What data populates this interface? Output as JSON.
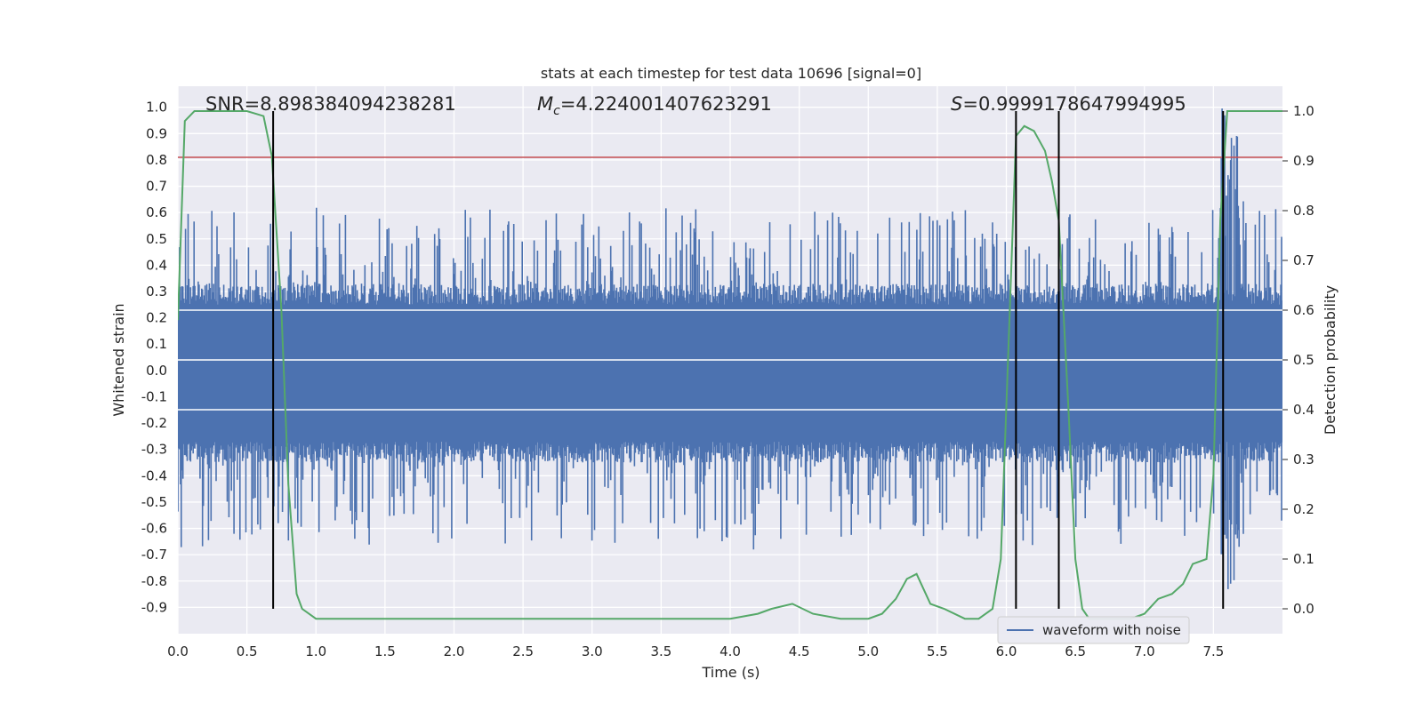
{
  "chart_data": {
    "type": "line",
    "title": "stats at each timestep for test data 10696 [signal=0]",
    "xlabel": "Time (s)",
    "ylabel": "Whitened strain",
    "y2label": "Detection probability",
    "xlim": [
      0.0,
      8.0
    ],
    "ylim": [
      -1.0,
      1.08
    ],
    "y2lim": [
      -0.05,
      1.05
    ],
    "x_ticks": [
      "0.0",
      "0.5",
      "1.0",
      "1.5",
      "2.0",
      "2.5",
      "3.0",
      "3.5",
      "4.0",
      "4.5",
      "5.0",
      "5.5",
      "6.0",
      "6.5",
      "7.0",
      "7.5"
    ],
    "y_ticks": [
      "-0.9",
      "-0.8",
      "-0.7",
      "-0.6",
      "-0.5",
      "-0.4",
      "-0.3",
      "-0.2",
      "-0.1",
      "0.0",
      "0.1",
      "0.2",
      "0.3",
      "0.4",
      "0.5",
      "0.6",
      "0.7",
      "0.8",
      "0.9",
      "1.0"
    ],
    "y2_ticks": [
      "0.0",
      "0.1",
      "0.2",
      "0.3",
      "0.4",
      "0.5",
      "0.6",
      "0.7",
      "0.8",
      "0.9",
      "1.0"
    ],
    "grid": true,
    "legend_position": "lower-right",
    "annotations": {
      "snr": "SNR=8.898384094238281",
      "mc_symbol": "M",
      "mc_sub": "c",
      "mc_value": "=4.224001407623291",
      "s_symbol": "S",
      "s_value": "=0.9999178647994995"
    },
    "series": [
      {
        "name": "waveform with noise",
        "axis": "left",
        "color": "#4c72b0",
        "noise_band_min": -0.32,
        "noise_band_max": 0.3,
        "peak_range": [
          -0.88,
          0.62
        ]
      },
      {
        "axis": "right",
        "color": "#55a868",
        "x": [
          0.0,
          0.05,
          0.12,
          0.2,
          0.3,
          0.4,
          0.5,
          0.62,
          0.68,
          0.75,
          0.8,
          0.86,
          0.9,
          1.0,
          1.5,
          2.0,
          2.5,
          3.0,
          3.5,
          4.0,
          4.2,
          4.3,
          4.45,
          4.6,
          4.8,
          5.0,
          5.1,
          5.2,
          5.28,
          5.35,
          5.45,
          5.55,
          5.7,
          5.8,
          5.9,
          5.96,
          6.02,
          6.07,
          6.13,
          6.2,
          6.28,
          6.33,
          6.38,
          6.45,
          6.5,
          6.55,
          6.6,
          6.7,
          6.9,
          7.0,
          7.1,
          7.2,
          7.28,
          7.35,
          7.45,
          7.5,
          7.55,
          7.6,
          7.65,
          7.7,
          8.0
        ],
        "values": [
          0.58,
          0.98,
          1.0,
          1.0,
          1.0,
          1.0,
          1.0,
          0.99,
          0.91,
          0.6,
          0.25,
          0.03,
          0.0,
          -0.02,
          -0.02,
          -0.02,
          -0.02,
          -0.02,
          -0.02,
          -0.02,
          -0.01,
          0.0,
          0.01,
          -0.01,
          -0.02,
          -0.02,
          -0.01,
          0.02,
          0.06,
          0.07,
          0.01,
          0.0,
          -0.02,
          -0.02,
          0.0,
          0.1,
          0.56,
          0.95,
          0.97,
          0.96,
          0.92,
          0.86,
          0.78,
          0.4,
          0.1,
          0.0,
          -0.02,
          -0.02,
          -0.02,
          -0.01,
          0.02,
          0.03,
          0.05,
          0.09,
          0.1,
          0.27,
          0.78,
          1.0,
          1.0,
          1.0,
          1.0
        ]
      }
    ],
    "horizontal_lines": [
      {
        "axis": "left",
        "y": 0.81,
        "color": "#c44e52"
      },
      {
        "axis": "right",
        "y": 0.6,
        "color": "#ffffff"
      },
      {
        "axis": "right",
        "y": 0.5,
        "color": "#ffffff"
      },
      {
        "axis": "right",
        "y": 0.4,
        "color": "#ffffff"
      }
    ],
    "vertical_lines_x": [
      0.69,
      6.07,
      6.38,
      7.57
    ]
  }
}
